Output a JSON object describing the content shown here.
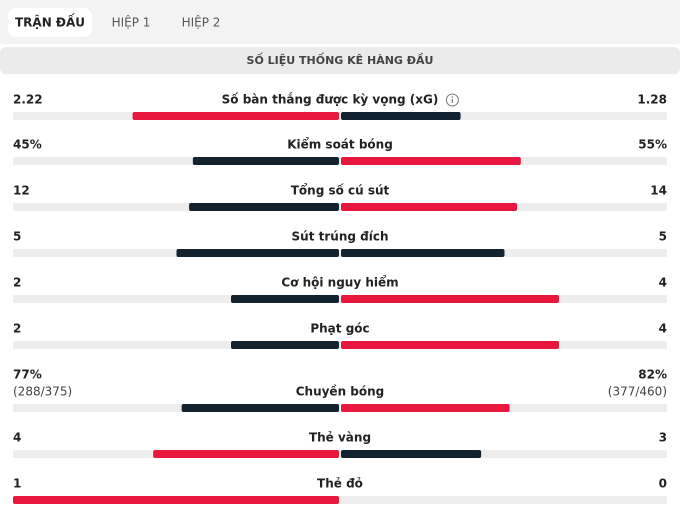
{
  "tabs": [
    "TRẬN ĐẤU",
    "HIỆP 1",
    "HIỆP 2"
  ],
  "header": {
    "title": "SỐ LIỆU THỐNG KÊ HÀNG ĐẦU"
  },
  "stats": {
    "rows": [
      {
        "label": "Số bàn thắng được kỳ vọng (xG)",
        "home": 2.22,
        "away": 1.28
      },
      {
        "label": "Kiểm soát bóng",
        "home": 45,
        "home_label": "45%",
        "away": 55,
        "away_label": "55%"
      },
      {
        "label": "Tổng số cú sút",
        "home": 12,
        "away": 14
      },
      {
        "label": "Sút trúng đích",
        "home": 5,
        "away": 5
      },
      {
        "label": "Cơ hội nguy hiểm",
        "home": 2,
        "away": 4
      },
      {
        "label": "Phạt góc",
        "home": 2,
        "away": 4
      },
      {
        "label": "Chuyền bóng",
        "home": 77,
        "home_label": "77%",
        "home_detail": "(288/375)",
        "away": 82,
        "away_label": "82%",
        "away_detail": "(377/460)"
      },
      {
        "label": "Thẻ vàng",
        "home": 4,
        "away": 3
      },
      {
        "label": "Thẻ đỏ",
        "home": 1,
        "away": 0
      }
    ]
  }
}
